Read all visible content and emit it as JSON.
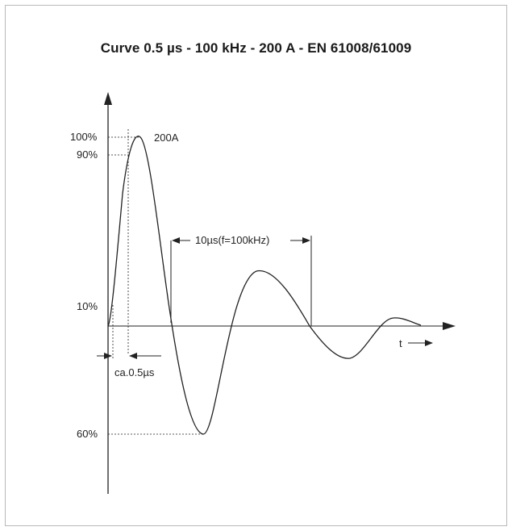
{
  "title": "Curve 0.5 µs - 100 kHz - 200 A - EN 61008/61009",
  "labels": {
    "pct_100": "100%",
    "pct_90": "90%",
    "pct_10": "10%",
    "pct_60": "60%",
    "peak": "200A",
    "period": "10µs(f=100kHz)",
    "rise": "ca.0.5µs",
    "time_axis": "t"
  },
  "colors": {
    "line": "#222222",
    "frame": "#b8b8b8"
  }
}
